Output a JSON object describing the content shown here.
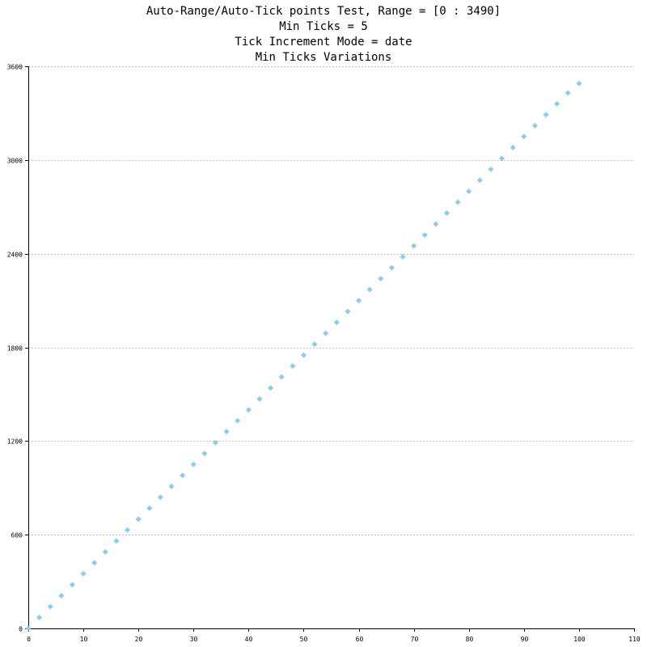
{
  "chart_data": {
    "type": "scatter",
    "title_lines": [
      "Auto-Range/Auto-Tick points Test, Range = [0 : 3490]",
      "Min Ticks = 5",
      "Tick Increment Mode = date",
      "Min Ticks Variations"
    ],
    "xlabel": "",
    "ylabel": "",
    "xlim": [
      0,
      110
    ],
    "ylim": [
      0,
      3600
    ],
    "x_ticks": [
      0,
      10,
      20,
      30,
      40,
      50,
      60,
      70,
      80,
      90,
      100,
      110
    ],
    "y_ticks": [
      0,
      600,
      1200,
      1800,
      2400,
      3000,
      3600
    ],
    "grid": "horizontal dashed",
    "marker": "diamond",
    "series": [
      {
        "x": [
          0,
          2,
          4,
          6,
          8,
          10,
          12,
          14,
          16,
          18,
          20,
          22,
          24,
          26,
          28,
          30,
          32,
          34,
          36,
          38,
          40,
          42,
          44,
          46,
          48,
          50,
          52,
          54,
          56,
          58,
          60,
          62,
          64,
          66,
          68,
          70,
          72,
          74,
          76,
          78,
          80,
          82,
          84,
          86,
          88,
          90,
          92,
          94,
          96,
          98,
          100
        ],
        "y": [
          0,
          70,
          140,
          210,
          280,
          350,
          420,
          490,
          560,
          630,
          700,
          770,
          840,
          910,
          980,
          1050,
          1120,
          1190,
          1260,
          1330,
          1400,
          1470,
          1540,
          1610,
          1680,
          1750,
          1820,
          1890,
          1960,
          2030,
          2100,
          2170,
          2240,
          2310,
          2380,
          2450,
          2520,
          2590,
          2660,
          2730,
          2800,
          2870,
          2940,
          3010,
          3080,
          3150,
          3220,
          3290,
          3360,
          3430,
          3490
        ]
      }
    ]
  },
  "colors": {
    "marker": "#87ceeb",
    "grid": "#c0c0c0",
    "axis": "#000000",
    "text": "#000000",
    "background": "#ffffff"
  }
}
